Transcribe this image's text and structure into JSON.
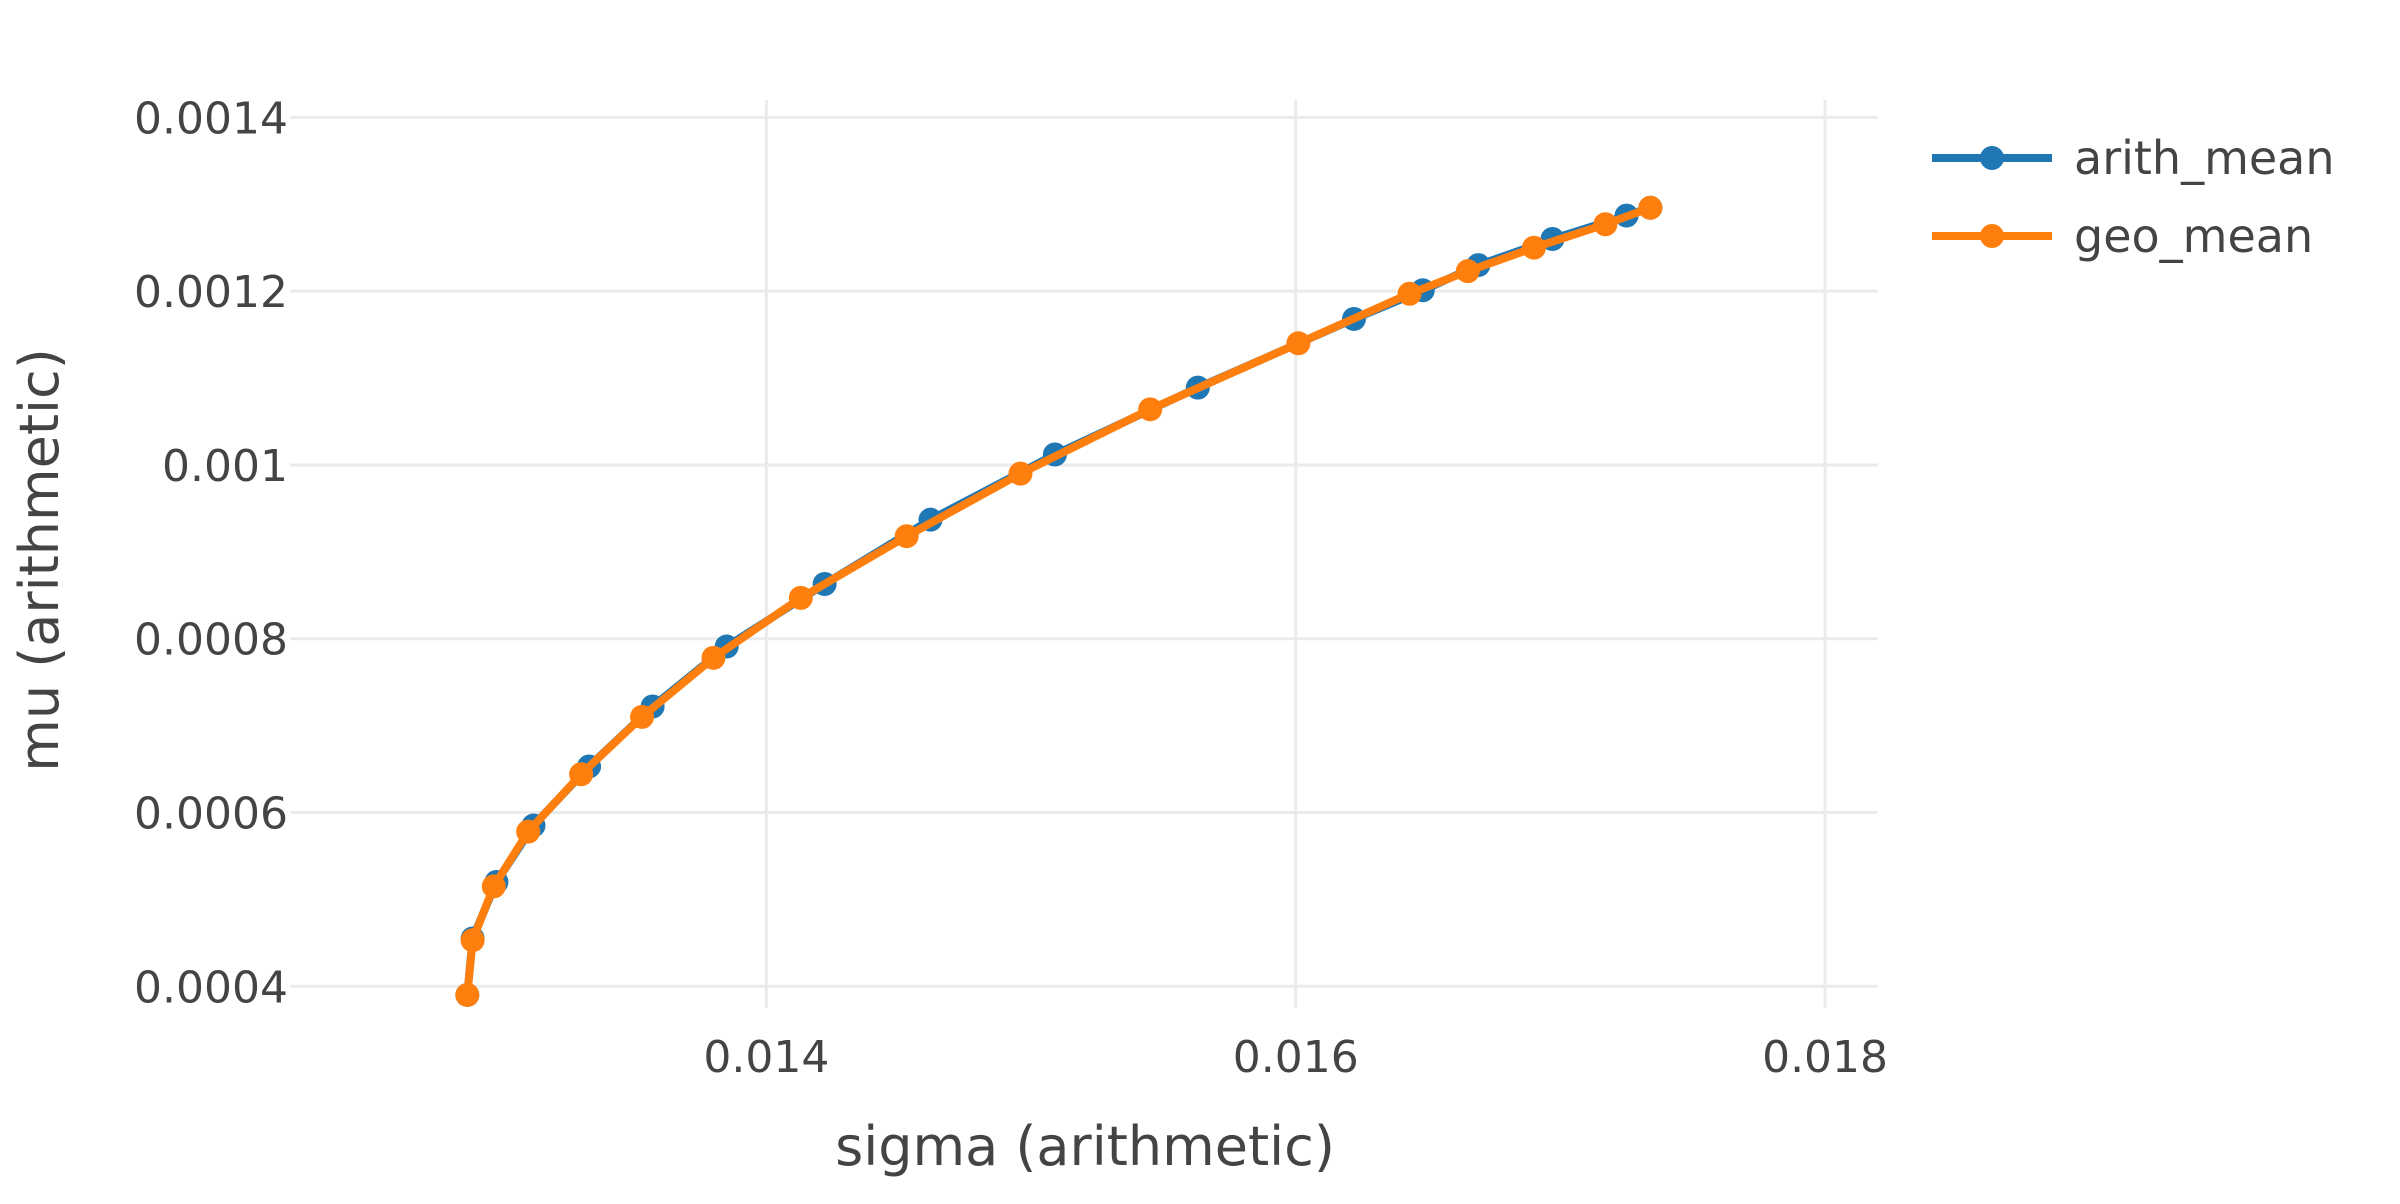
{
  "chart_data": {
    "type": "line",
    "xlabel": "sigma (arithmetic)",
    "ylabel": "mu (arithmetic)",
    "xlim": [
      0.0122,
      0.0182
    ],
    "ylim": [
      0.000375,
      0.00142
    ],
    "x_ticks": [
      0.014,
      0.016,
      0.018
    ],
    "x_tick_labels": [
      "0.014",
      "0.016",
      "0.018"
    ],
    "y_ticks": [
      0.0004,
      0.0006,
      0.0008,
      0.001,
      0.0012,
      0.0014
    ],
    "y_tick_labels": [
      "0.0004",
      "0.0006",
      "0.0008",
      "0.001",
      "0.0012",
      "0.0014"
    ],
    "grid": true,
    "legend_position": "top-right",
    "series": [
      {
        "name": "arith_mean",
        "color": "#1f77b4",
        "x": [
          0.01287,
          0.01289,
          0.01298,
          0.01312,
          0.01333,
          0.01357,
          0.01385,
          0.01422,
          0.01462,
          0.01509,
          0.01563,
          0.01622,
          0.01648,
          0.01669,
          0.01697,
          0.01725,
          0.01734
        ],
        "y": [
          0.00039,
          0.000455,
          0.00052,
          0.000585,
          0.000653,
          0.000722,
          0.000791,
          0.000863,
          0.000937,
          0.001012,
          0.001089,
          0.001168,
          0.001201,
          0.00123,
          0.00126,
          0.001287,
          0.001296
        ]
      },
      {
        "name": "geo_mean",
        "color": "#ff7f0e",
        "x": [
          0.01287,
          0.01289,
          0.01297,
          0.0131,
          0.0133,
          0.01353,
          0.0138,
          0.01413,
          0.01453,
          0.01496,
          0.01545,
          0.01601,
          0.01643,
          0.01665,
          0.0169,
          0.01717,
          0.01734
        ],
        "y": [
          0.00039,
          0.000453,
          0.000515,
          0.000578,
          0.000644,
          0.00071,
          0.000778,
          0.000847,
          0.000918,
          0.00099,
          0.001064,
          0.00114,
          0.001197,
          0.001223,
          0.00125,
          0.001277,
          0.001296
        ]
      }
    ]
  }
}
